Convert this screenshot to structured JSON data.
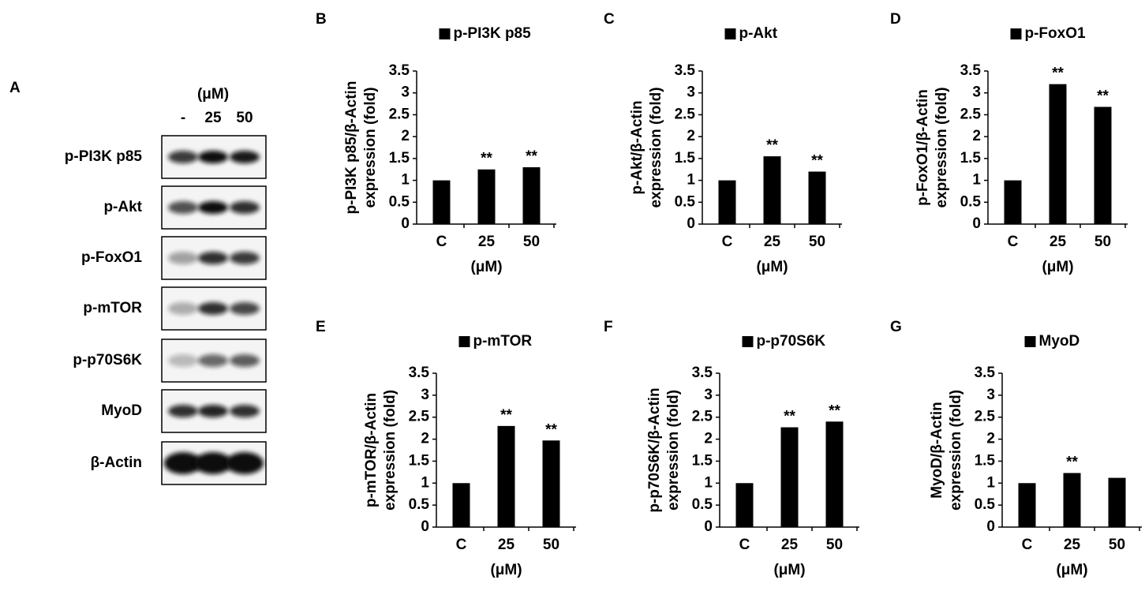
{
  "blot": {
    "panel": "A",
    "unit": "(μM)",
    "lanes": [
      "-",
      "25",
      "50"
    ],
    "rows": [
      "p-PI3K p85",
      "p-Akt",
      "p-FoxO1",
      "p-mTOR",
      "p-p70S6K",
      "MyoD",
      "β-Actin"
    ]
  },
  "chart_data": [
    {
      "type": "bar",
      "panel": "B",
      "ylabel": [
        "p-PI3K p85/β-Actin",
        "expression (fold)"
      ],
      "categories": [
        "C",
        "25",
        "50"
      ],
      "xlabel": "(μM)",
      "series": [
        {
          "name": "p-PI3K p85",
          "color": "#000000",
          "values": [
            1,
            1.25,
            1.3
          ]
        }
      ],
      "annotations": [
        null,
        "**",
        "**"
      ],
      "ylim": [
        0,
        3.5
      ],
      "yticks": [
        0,
        0.5,
        1,
        1.5,
        2,
        2.5,
        3,
        3.5
      ]
    },
    {
      "type": "bar",
      "panel": "C",
      "ylabel": [
        "p-Akt/β-Actin",
        "expression (fold)"
      ],
      "categories": [
        "C",
        "25",
        "50"
      ],
      "xlabel": "(μM)",
      "series": [
        {
          "name": "p-Akt",
          "color": "#000000",
          "values": [
            1,
            1.55,
            1.2
          ]
        }
      ],
      "annotations": [
        null,
        "**",
        "**"
      ],
      "ylim": [
        0,
        3.5
      ],
      "yticks": [
        0,
        0.5,
        1,
        1.5,
        2,
        2.5,
        3,
        3.5
      ]
    },
    {
      "type": "bar",
      "panel": "D",
      "ylabel": [
        "p-FoxO1/β-Actin",
        "expression (fold)"
      ],
      "categories": [
        "C",
        "25",
        "50"
      ],
      "xlabel": "(μM)",
      "series": [
        {
          "name": "p-FoxO1",
          "color": "#000000",
          "values": [
            1,
            3.2,
            2.68
          ]
        }
      ],
      "annotations": [
        null,
        "**",
        "**"
      ],
      "ylim": [
        0,
        3.5
      ],
      "yticks": [
        0,
        0.5,
        1,
        1.5,
        2,
        2.5,
        3,
        3.5
      ]
    },
    {
      "type": "bar",
      "panel": "E",
      "ylabel": [
        "p-mTOR/β-Actin",
        "expression (fold)"
      ],
      "categories": [
        "C",
        "25",
        "50"
      ],
      "xlabel": "(μM)",
      "series": [
        {
          "name": "p-mTOR",
          "color": "#000000",
          "values": [
            1,
            2.3,
            1.97
          ]
        }
      ],
      "annotations": [
        null,
        "**",
        "**"
      ],
      "ylim": [
        0,
        3.5
      ],
      "yticks": [
        0,
        0.5,
        1,
        1.5,
        2,
        2.5,
        3,
        3.5
      ]
    },
    {
      "type": "bar",
      "panel": "F",
      "ylabel": [
        "p-p70S6K/β-Actin",
        "expression (fold)"
      ],
      "categories": [
        "C",
        "25",
        "50"
      ],
      "xlabel": "(μM)",
      "series": [
        {
          "name": "p-p70S6K",
          "color": "#000000",
          "values": [
            1,
            2.27,
            2.4
          ]
        }
      ],
      "annotations": [
        null,
        "**",
        "**"
      ],
      "ylim": [
        0,
        3.5
      ],
      "yticks": [
        0,
        0.5,
        1,
        1.5,
        2,
        2.5,
        3,
        3.5
      ]
    },
    {
      "type": "bar",
      "panel": "G",
      "ylabel": [
        "MyoD/β-Actin",
        "expression (fold)"
      ],
      "categories": [
        "C",
        "25",
        "50"
      ],
      "xlabel": "(μM)",
      "series": [
        {
          "name": "MyoD",
          "color": "#000000",
          "values": [
            1,
            1.23,
            1.12
          ]
        }
      ],
      "annotations": [
        null,
        "**",
        null
      ],
      "ylim": [
        0,
        3.5
      ],
      "yticks": [
        0,
        0.5,
        1,
        1.5,
        2,
        2.5,
        3,
        3.5
      ]
    }
  ]
}
